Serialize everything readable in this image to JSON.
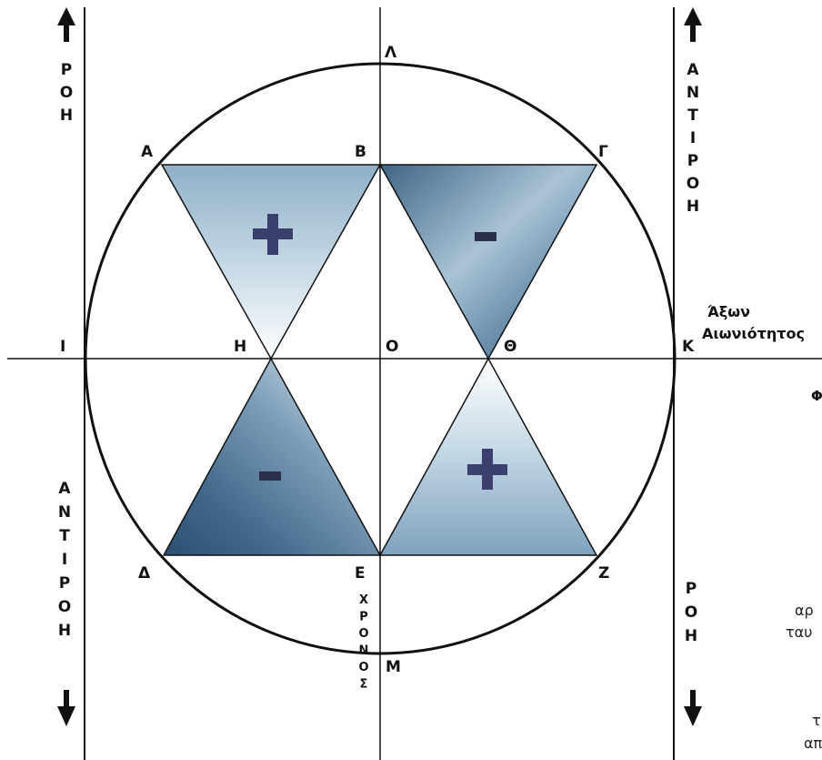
{
  "points": {
    "A": "Α",
    "B": "Β",
    "G": "Γ",
    "D": "Δ",
    "E": "Ε",
    "Z": "Ζ",
    "H": "Η",
    "O": "Ο",
    "TH": "Θ",
    "I": "Ι",
    "K": "Κ",
    "L": "Λ",
    "M": "Μ"
  },
  "axis_label": {
    "line1": "Άξων",
    "line2": "Αιωνιότητος"
  },
  "flow": {
    "top_left": [
      "Ρ",
      "Ο",
      "Η"
    ],
    "top_right": [
      "Α",
      "Ν",
      "Τ",
      "Ι",
      "Ρ",
      "Ο",
      "Η"
    ],
    "bottom_left": [
      "Α",
      "Ν",
      "Τ",
      "Ι",
      "Ρ",
      "Ο",
      "Η"
    ],
    "bottom_right": [
      "Ρ",
      "Ο",
      "Η"
    ]
  },
  "time_axis": [
    "Χ",
    "Ρ",
    "Ο",
    "Ν",
    "Ο",
    "Σ"
  ],
  "signs": {
    "top_left": "+",
    "top_right": "-",
    "bottom_left": "-",
    "bottom_right": "+"
  },
  "side_text": {
    "phi": "Φ",
    "line_a": "αρ",
    "line_b": "ταυ",
    "line_c": "τ",
    "line_d": "απ"
  },
  "colors": {
    "line": "#111111",
    "sign": "#3a3f6e",
    "sky_light": "#f4f8fb",
    "sky_dark": "#5d86a6"
  },
  "icons": [
    "up-arrow-icon",
    "down-arrow-icon"
  ]
}
